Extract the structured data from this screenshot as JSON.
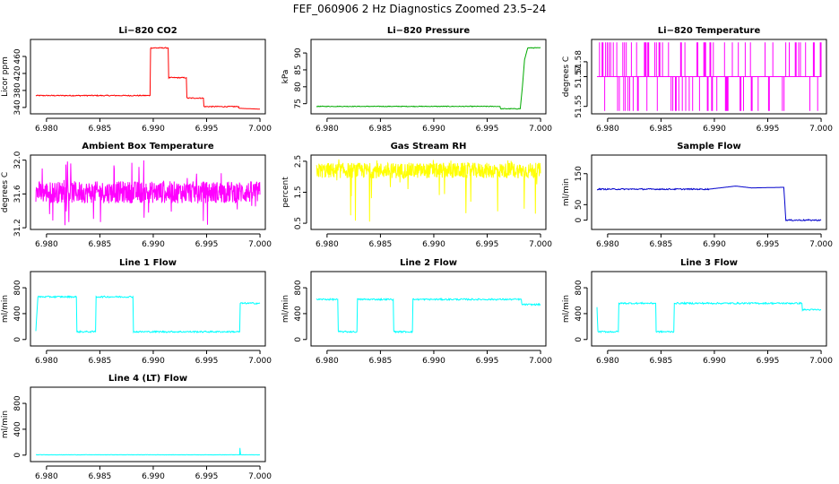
{
  "page": {
    "title": "FEF_060906  2 Hz Diagnostics Zoomed 23.5–24"
  },
  "chart_data": [
    {
      "type": "line",
      "title": "Li−820 CO2",
      "ylabel": "Licor ppm",
      "color": "#ff0000",
      "xlim": [
        6.9785,
        7.0005
      ],
      "ylim": [
        325,
        500
      ],
      "xticks": [
        "6.980",
        "6.985",
        "6.990",
        "6.995",
        "7.000"
      ],
      "xtick_values": [
        6.98,
        6.985,
        6.99,
        6.995,
        7.0
      ],
      "yticks": [
        "340",
        "380",
        "420",
        "460"
      ],
      "ytick_values": [
        340,
        380,
        420,
        460
      ],
      "noise": 1.2,
      "x": [
        6.979,
        6.9897,
        6.98975,
        6.9914,
        6.99145,
        6.9931,
        6.99315,
        6.9947,
        6.99475,
        6.998,
        6.99805,
        7.0
      ],
      "y": [
        368,
        368,
        480,
        480,
        410,
        410,
        362,
        362,
        342,
        342,
        338,
        336
      ]
    },
    {
      "type": "line",
      "title": "Li−820 Pressure",
      "ylabel": "kPa",
      "color": "#00aa00",
      "xlim": [
        6.9785,
        7.0005
      ],
      "ylim": [
        72,
        94
      ],
      "xticks": [
        "6.980",
        "6.985",
        "6.990",
        "6.995",
        "7.000"
      ],
      "xtick_values": [
        6.98,
        6.985,
        6.99,
        6.995,
        7.0
      ],
      "yticks": [
        "75",
        "80",
        "85",
        "90"
      ],
      "ytick_values": [
        75,
        80,
        85,
        90
      ],
      "noise": 0.1,
      "x": [
        6.979,
        6.9962,
        6.99625,
        6.9981,
        6.9983,
        6.9985,
        6.9988,
        7.0
      ],
      "y": [
        74.2,
        74.2,
        73.5,
        73.5,
        80,
        88,
        91.5,
        91.5
      ]
    },
    {
      "type": "line",
      "title": "Li−820 Temperature",
      "ylabel": "degrees C",
      "color": "#ff00ff",
      "xlim": [
        6.9785,
        7.0005
      ],
      "ylim": [
        51.545,
        51.595
      ],
      "xticks": [
        "6.980",
        "6.985",
        "6.990",
        "6.995",
        "7.000"
      ],
      "xtick_values": [
        6.98,
        6.985,
        6.99,
        6.995,
        7.0
      ],
      "yticks": [
        "51.55",
        "51.57",
        "51.58"
      ],
      "ytick_values": [
        51.55,
        51.57,
        51.58
      ],
      "spikes": {
        "base": 51.57,
        "high": 51.593,
        "low": 51.547,
        "count": 90
      },
      "x": [
        6.979,
        7.0
      ],
      "y": [
        51.57,
        51.57
      ]
    },
    {
      "type": "line",
      "title": "Ambient Box Temperature",
      "ylabel": "degrees C",
      "color": "#ff00ff",
      "xlim": [
        6.9785,
        7.0005
      ],
      "ylim": [
        31.18,
        32.06
      ],
      "xticks": [
        "6.980",
        "6.985",
        "6.990",
        "6.995",
        "7.000"
      ],
      "xtick_values": [
        6.98,
        6.985,
        6.99,
        6.995,
        7.0
      ],
      "yticks": [
        "31.2",
        "31.6",
        "32.0"
      ],
      "ytick_values": [
        31.2,
        31.6,
        32.0
      ],
      "band": {
        "center": 31.62,
        "half": 0.13,
        "spike_high": 32.0,
        "spike_low": 31.22,
        "count": 700
      },
      "x": [
        6.979,
        7.0
      ],
      "y": [
        31.62,
        31.62
      ]
    },
    {
      "type": "line",
      "title": "Gas Stream RH",
      "ylabel": "percent",
      "color": "#ffff00",
      "xlim": [
        6.9785,
        7.0005
      ],
      "ylim": [
        0.3,
        2.7
      ],
      "xticks": [
        "6.980",
        "6.985",
        "6.990",
        "6.995",
        "7.000"
      ],
      "xtick_values": [
        6.98,
        6.985,
        6.99,
        6.995,
        7.0
      ],
      "yticks": [
        "0.5",
        "1.5",
        "2.5"
      ],
      "ytick_values": [
        0.5,
        1.5,
        2.5
      ],
      "band": {
        "center": 2.2,
        "half": 0.25,
        "spike_high": 2.6,
        "spike_low": 0.4,
        "count": 700
      },
      "x": [
        6.979,
        7.0
      ],
      "y": [
        2.2,
        2.2
      ]
    },
    {
      "type": "line",
      "title": "Sample Flow",
      "ylabel": "ml/min",
      "color": "#0000cc",
      "xlim": [
        6.9785,
        7.0005
      ],
      "ylim": [
        -30,
        210
      ],
      "xticks": [
        "6.980",
        "6.985",
        "6.990",
        "6.995",
        "7.000"
      ],
      "xtick_values": [
        6.98,
        6.985,
        6.99,
        6.995,
        7.0
      ],
      "yticks": [
        "0",
        "50",
        "150"
      ],
      "ytick_values": [
        0,
        50,
        150
      ],
      "noise": 2,
      "x": [
        6.979,
        6.9895,
        6.9905,
        6.992,
        6.9935,
        6.9965,
        6.9967,
        7.0
      ],
      "y": [
        100,
        100,
        104,
        110,
        104,
        106,
        0,
        0
      ]
    },
    {
      "type": "line",
      "title": "Line 1 Flow",
      "ylabel": "ml/min",
      "color": "#00ffff",
      "xlim": [
        6.9785,
        7.0005
      ],
      "ylim": [
        -100,
        1050
      ],
      "xticks": [
        "6.980",
        "6.985",
        "6.990",
        "6.995",
        "7.000"
      ],
      "xtick_values": [
        6.98,
        6.985,
        6.99,
        6.995,
        7.0
      ],
      "yticks": [
        "0",
        "400",
        "800"
      ],
      "ytick_values": [
        0,
        400,
        800
      ],
      "noise": 12,
      "x": [
        6.979,
        6.9792,
        6.9828,
        6.98285,
        6.9846,
        6.98465,
        6.9881,
        6.98815,
        6.9981,
        6.99815,
        7.0
      ],
      "y": [
        130,
        660,
        660,
        120,
        120,
        660,
        660,
        120,
        120,
        560,
        560
      ]
    },
    {
      "type": "line",
      "title": "Line 2 Flow",
      "ylabel": "ml/min",
      "color": "#00ffff",
      "xlim": [
        6.9785,
        7.0005
      ],
      "ylim": [
        -100,
        1050
      ],
      "xticks": [
        "6.980",
        "6.985",
        "6.990",
        "6.995",
        "7.000"
      ],
      "xtick_values": [
        6.98,
        6.985,
        6.99,
        6.995,
        7.0
      ],
      "yticks": [
        "0",
        "400",
        "800"
      ],
      "ytick_values": [
        0,
        400,
        800
      ],
      "noise": 12,
      "x": [
        6.979,
        6.981,
        6.98105,
        6.9828,
        6.98285,
        6.9862,
        6.98625,
        6.988,
        6.98805,
        6.9982,
        6.99825,
        7.0
      ],
      "y": [
        620,
        620,
        120,
        120,
        620,
        620,
        120,
        120,
        620,
        620,
        540,
        540
      ]
    },
    {
      "type": "line",
      "title": "Line 3 Flow",
      "ylabel": "ml/min",
      "color": "#00ffff",
      "xlim": [
        6.9785,
        7.0005
      ],
      "ylim": [
        -100,
        1050
      ],
      "xticks": [
        "6.980",
        "6.985",
        "6.990",
        "6.995",
        "7.000"
      ],
      "xtick_values": [
        6.98,
        6.985,
        6.99,
        6.995,
        7.0
      ],
      "yticks": [
        "0",
        "400",
        "800"
      ],
      "ytick_values": [
        0,
        400,
        800
      ],
      "noise": 12,
      "x": [
        6.979,
        6.9791,
        6.9792,
        6.981,
        6.98105,
        6.9845,
        6.98455,
        6.9862,
        6.98625,
        6.9982,
        6.99825,
        7.0
      ],
      "y": [
        500,
        120,
        120,
        120,
        560,
        560,
        120,
        120,
        560,
        560,
        460,
        460
      ]
    },
    {
      "type": "line",
      "title": "Line 4 (LT) Flow",
      "ylabel": "ml/min",
      "color": "#00ffff",
      "xlim": [
        6.9785,
        7.0005
      ],
      "ylim": [
        -100,
        1050
      ],
      "xticks": [
        "6.980",
        "6.985",
        "6.990",
        "6.995",
        "7.000"
      ],
      "xtick_values": [
        6.98,
        6.985,
        6.99,
        6.995,
        7.0
      ],
      "yticks": [
        "0",
        "400",
        "800"
      ],
      "ytick_values": [
        0,
        400,
        800
      ],
      "noise": 2,
      "x": [
        6.979,
        6.9981,
        6.99812,
        6.99815,
        6.99818,
        7.0
      ],
      "y": [
        5,
        5,
        110,
        60,
        5,
        5
      ]
    }
  ]
}
